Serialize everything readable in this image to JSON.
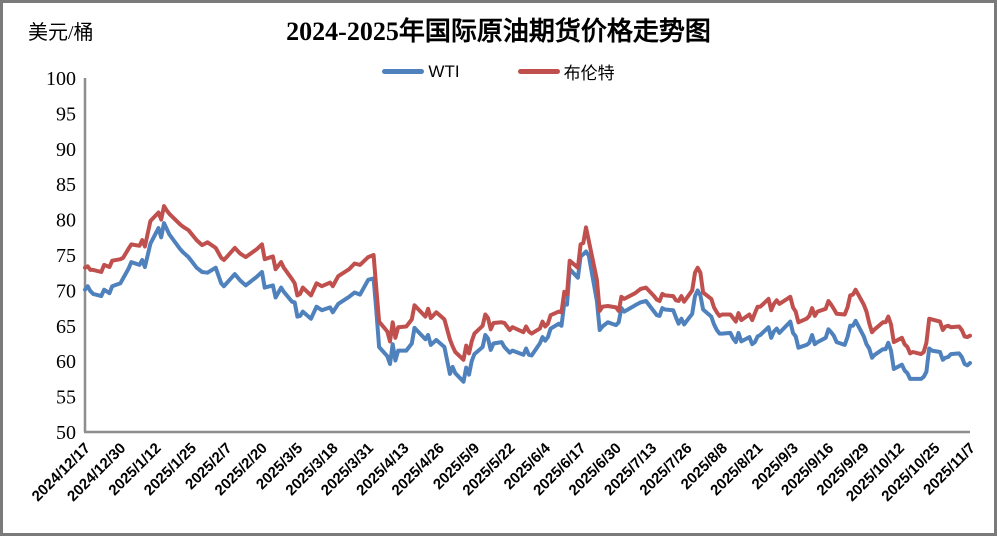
{
  "title": "2024-2025年国际原油期货价格走势图",
  "y_axis_unit": "美元/桶",
  "chart_data": {
    "type": "line",
    "title": "2024-2025年国际原油期货价格走势图",
    "ylabel": "美元/桶",
    "xlabel": "",
    "ylim": [
      50,
      100
    ],
    "y_tick_step": 5,
    "grid": false,
    "legend_position": "top-center",
    "axis_color": "#8e8e8e",
    "x_tick_labels": [
      "2024/12/17",
      "2024/12/30",
      "2025/1/12",
      "2025/1/25",
      "2025/2/7",
      "2025/2/20",
      "2025/3/5",
      "2025/3/18",
      "2025/3/31",
      "2025/4/13",
      "2025/4/26",
      "2025/5/9",
      "2025/5/22",
      "2025/6/4",
      "2025/6/17",
      "2025/6/30",
      "2025/7/13",
      "2025/7/26",
      "2025/8/8",
      "2025/8/21",
      "2025/9/3",
      "2025/9/16",
      "2025/9/29",
      "2025/10/12",
      "2025/10/25",
      "2025/11/7"
    ],
    "x_tick_day_step": 13,
    "x_day_span": 325,
    "points_format": "[day_offset_from_2024-12-17, WTI_usd_per_barrel, Brent_usd_per_barrel]",
    "series": [
      {
        "name": "WTI",
        "color": "#4F81BD"
      },
      {
        "name": "布伦特",
        "color": "#C0504D"
      }
    ],
    "points": [
      [
        0,
        70.1,
        73.2
      ],
      [
        1,
        70.6,
        73.4
      ],
      [
        2,
        69.9,
        72.9
      ],
      [
        3,
        69.5,
        72.9
      ],
      [
        6,
        69.2,
        72.6
      ],
      [
        7,
        70.1,
        73.6
      ],
      [
        9,
        69.6,
        73.3
      ],
      [
        10,
        70.6,
        74.2
      ],
      [
        13,
        71.0,
        74.4
      ],
      [
        14,
        71.7,
        74.6
      ],
      [
        16,
        73.1,
        75.9
      ],
      [
        17,
        74.0,
        76.5
      ],
      [
        20,
        73.6,
        76.3
      ],
      [
        21,
        74.3,
        77.1
      ],
      [
        22,
        73.3,
        76.2
      ],
      [
        24,
        76.6,
        79.8
      ],
      [
        27,
        78.8,
        81.0
      ],
      [
        28,
        77.5,
        80.0
      ],
      [
        29,
        79.5,
        81.9
      ],
      [
        30,
        78.7,
        81.3
      ],
      [
        31,
        77.9,
        80.8
      ],
      [
        35,
        75.8,
        79.3
      ],
      [
        36,
        75.4,
        79.0
      ],
      [
        38,
        74.7,
        78.5
      ],
      [
        41,
        73.2,
        77.1
      ],
      [
        43,
        72.6,
        76.4
      ],
      [
        45,
        72.5,
        76.8
      ],
      [
        48,
        73.2,
        76.0
      ],
      [
        50,
        71.0,
        74.6
      ],
      [
        51,
        70.6,
        74.3
      ],
      [
        52,
        71.0,
        74.7
      ],
      [
        55,
        72.3,
        76.0
      ],
      [
        57,
        71.4,
        75.2
      ],
      [
        59,
        70.7,
        74.7
      ],
      [
        63,
        71.9,
        75.8
      ],
      [
        65,
        72.6,
        76.5
      ],
      [
        66,
        70.4,
        74.4
      ],
      [
        69,
        70.7,
        74.8
      ],
      [
        70,
        69.0,
        73.0
      ],
      [
        72,
        70.4,
        74.0
      ],
      [
        73,
        69.8,
        73.2
      ],
      [
        76,
        68.4,
        71.6
      ],
      [
        77,
        68.3,
        71.0
      ],
      [
        78,
        66.3,
        69.3
      ],
      [
        79,
        66.4,
        69.5
      ],
      [
        80,
        67.0,
        70.4
      ],
      [
        83,
        66.0,
        69.3
      ],
      [
        85,
        67.7,
        71.0
      ],
      [
        87,
        67.2,
        70.6
      ],
      [
        90,
        67.6,
        71.1
      ],
      [
        91,
        66.9,
        70.6
      ],
      [
        93,
        68.1,
        72.0
      ],
      [
        97,
        69.1,
        73.0
      ],
      [
        99,
        69.7,
        73.8
      ],
      [
        101,
        69.4,
        73.6
      ],
      [
        104,
        71.5,
        74.7
      ],
      [
        106,
        71.7,
        75.0
      ],
      [
        107,
        67.0,
        70.1
      ],
      [
        108,
        62.0,
        65.6
      ],
      [
        111,
        60.7,
        64.2
      ],
      [
        112,
        59.6,
        62.8
      ],
      [
        113,
        62.4,
        65.5
      ],
      [
        114,
        60.1,
        63.3
      ],
      [
        115,
        61.5,
        64.8
      ],
      [
        118,
        61.5,
        64.9
      ],
      [
        120,
        62.5,
        65.9
      ],
      [
        121,
        64.7,
        67.9
      ],
      [
        125,
        63.1,
        66.3
      ],
      [
        126,
        63.7,
        67.4
      ],
      [
        127,
        62.3,
        66.1
      ],
      [
        129,
        63.0,
        66.9
      ],
      [
        132,
        62.0,
        65.9
      ],
      [
        134,
        58.2,
        63.1
      ],
      [
        135,
        59.2,
        62.1
      ],
      [
        136,
        58.3,
        61.3
      ],
      [
        139,
        57.1,
        60.2
      ],
      [
        140,
        59.1,
        62.2
      ],
      [
        141,
        58.1,
        61.1
      ],
      [
        142,
        60.0,
        62.8
      ],
      [
        143,
        61.0,
        63.9
      ],
      [
        146,
        62.0,
        65.0
      ],
      [
        147,
        63.7,
        66.6
      ],
      [
        148,
        63.2,
        66.1
      ],
      [
        149,
        61.6,
        64.5
      ],
      [
        150,
        62.5,
        65.4
      ],
      [
        153,
        62.7,
        65.5
      ],
      [
        154,
        62.0,
        65.4
      ],
      [
        155,
        61.6,
        64.9
      ],
      [
        156,
        61.2,
        64.4
      ],
      [
        157,
        61.5,
        64.8
      ],
      [
        161,
        60.9,
        64.1
      ],
      [
        162,
        61.8,
        64.9
      ],
      [
        163,
        60.9,
        64.2
      ],
      [
        164,
        60.8,
        63.9
      ],
      [
        167,
        62.5,
        64.6
      ],
      [
        168,
        63.4,
        65.6
      ],
      [
        169,
        62.9,
        64.9
      ],
      [
        170,
        63.4,
        65.3
      ],
      [
        171,
        64.6,
        66.5
      ],
      [
        174,
        65.3,
        67.0
      ],
      [
        175,
        65.0,
        66.9
      ],
      [
        176,
        68.2,
        69.8
      ],
      [
        177,
        68.0,
        69.4
      ],
      [
        178,
        73.0,
        74.2
      ],
      [
        181,
        71.8,
        73.2
      ],
      [
        182,
        74.8,
        76.5
      ],
      [
        183,
        75.1,
        76.7
      ],
      [
        184,
        75.5,
        78.9
      ],
      [
        185,
        74.9,
        77.0
      ],
      [
        188,
        68.5,
        71.5
      ],
      [
        189,
        64.4,
        67.1
      ],
      [
        190,
        64.9,
        67.7
      ],
      [
        192,
        65.5,
        67.8
      ],
      [
        195,
        65.1,
        67.6
      ],
      [
        196,
        65.5,
        67.1
      ],
      [
        197,
        67.5,
        69.1
      ],
      [
        198,
        67.0,
        68.8
      ],
      [
        202,
        67.9,
        69.6
      ],
      [
        204,
        68.3,
        70.2
      ],
      [
        206,
        68.5,
        70.4
      ],
      [
        209,
        67.0,
        69.2
      ],
      [
        210,
        66.5,
        68.7
      ],
      [
        211,
        66.4,
        68.5
      ],
      [
        212,
        67.5,
        69.5
      ],
      [
        213,
        67.3,
        69.3
      ],
      [
        216,
        67.2,
        69.2
      ],
      [
        217,
        66.2,
        68.6
      ],
      [
        218,
        65.3,
        68.5
      ],
      [
        219,
        66.0,
        69.2
      ],
      [
        220,
        65.2,
        68.4
      ],
      [
        223,
        66.7,
        70.0
      ],
      [
        224,
        69.2,
        72.5
      ],
      [
        225,
        70.0,
        73.2
      ],
      [
        226,
        69.3,
        72.5
      ],
      [
        227,
        67.3,
        69.7
      ],
      [
        230,
        66.3,
        68.8
      ],
      [
        231,
        65.2,
        67.6
      ],
      [
        232,
        64.4,
        66.9
      ],
      [
        233,
        63.9,
        66.4
      ],
      [
        234,
        63.9,
        66.6
      ],
      [
        237,
        64.0,
        66.6
      ],
      [
        238,
        63.2,
        66.1
      ],
      [
        239,
        62.7,
        65.6
      ],
      [
        240,
        64.0,
        66.8
      ],
      [
        241,
        62.8,
        65.8
      ],
      [
        244,
        63.4,
        66.6
      ],
      [
        245,
        62.4,
        65.8
      ],
      [
        246,
        62.7,
        66.8
      ],
      [
        247,
        63.5,
        67.7
      ],
      [
        248,
        63.7,
        67.7
      ],
      [
        251,
        64.8,
        68.8
      ],
      [
        252,
        63.3,
        67.2
      ],
      [
        253,
        64.2,
        68.1
      ],
      [
        254,
        64.6,
        68.6
      ],
      [
        255,
        64.0,
        68.1
      ],
      [
        259,
        65.6,
        69.1
      ],
      [
        260,
        64.0,
        67.6
      ],
      [
        261,
        63.5,
        67.0
      ],
      [
        262,
        61.9,
        65.5
      ],
      [
        265,
        62.3,
        66.0
      ],
      [
        266,
        62.6,
        66.4
      ],
      [
        267,
        63.7,
        67.5
      ],
      [
        268,
        62.4,
        66.4
      ],
      [
        269,
        62.7,
        67.0
      ],
      [
        272,
        63.3,
        67.4
      ],
      [
        273,
        64.5,
        68.5
      ],
      [
        274,
        64.1,
        68.0
      ],
      [
        275,
        63.6,
        67.4
      ],
      [
        276,
        62.7,
        66.7
      ],
      [
        279,
        62.3,
        66.6
      ],
      [
        280,
        63.4,
        67.6
      ],
      [
        281,
        65.0,
        69.3
      ],
      [
        282,
        65.0,
        69.4
      ],
      [
        283,
        65.7,
        70.1
      ],
      [
        286,
        63.5,
        68.0
      ],
      [
        287,
        62.4,
        67.0
      ],
      [
        288,
        61.8,
        65.4
      ],
      [
        289,
        60.5,
        64.1
      ],
      [
        290,
        60.9,
        64.5
      ],
      [
        293,
        61.7,
        65.5
      ],
      [
        294,
        61.7,
        65.5
      ],
      [
        295,
        62.6,
        66.3
      ],
      [
        296,
        61.5,
        65.2
      ],
      [
        297,
        58.9,
        62.7
      ],
      [
        300,
        59.5,
        63.3
      ],
      [
        301,
        58.7,
        62.4
      ],
      [
        302,
        58.3,
        62.0
      ],
      [
        303,
        57.5,
        61.1
      ],
      [
        304,
        57.5,
        61.3
      ],
      [
        307,
        57.5,
        61.0
      ],
      [
        308,
        57.8,
        61.3
      ],
      [
        309,
        58.5,
        62.6
      ],
      [
        310,
        61.8,
        66.0
      ],
      [
        311,
        61.5,
        65.9
      ],
      [
        314,
        61.3,
        65.6
      ],
      [
        315,
        60.2,
        64.4
      ],
      [
        316,
        60.5,
        64.9
      ],
      [
        317,
        60.6,
        65.0
      ],
      [
        318,
        61.0,
        64.8
      ],
      [
        321,
        61.1,
        64.9
      ],
      [
        322,
        60.6,
        64.4
      ],
      [
        323,
        59.6,
        63.5
      ],
      [
        324,
        59.4,
        63.4
      ],
      [
        325,
        59.75,
        63.6
      ]
    ]
  }
}
